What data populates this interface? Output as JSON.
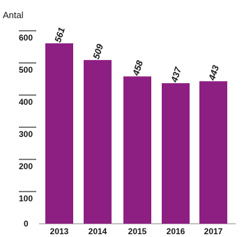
{
  "chart_data": {
    "type": "bar",
    "ylabel": "Antal",
    "categories": [
      "2013",
      "2014",
      "2015",
      "2016",
      "2017"
    ],
    "values": [
      561,
      509,
      458,
      437,
      443
    ],
    "value_labels": [
      "561",
      "509",
      "458",
      "437",
      "443"
    ],
    "yticks": [
      0,
      100,
      200,
      300,
      400,
      500,
      600
    ],
    "ytick_labels": [
      "0",
      "100",
      "200",
      "300",
      "400",
      "500",
      "600"
    ],
    "ylim": [
      0,
      650
    ],
    "bar_color": "#8e1f82"
  }
}
